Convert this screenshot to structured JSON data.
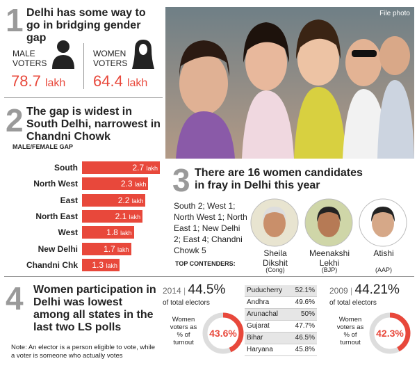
{
  "section1": {
    "number": "1",
    "title": "Delhi has some way to go in bridging gender gap",
    "male_label": "MALE VOTERS",
    "male_value": "78.7",
    "female_label": "WOMEN VOTERS",
    "female_value": "64.4",
    "unit": "lakh"
  },
  "photo_credit": "File photo",
  "section2": {
    "number": "2",
    "title": "The gap is widest in South Delhi, narrowest in Chandni Chowk",
    "axis_label": "MALE/FEMALE GAP",
    "categories": [
      "South",
      "North West",
      "East",
      "North East",
      "West",
      "New Delhi",
      "Chandni Chk"
    ],
    "values": [
      2.7,
      2.3,
      2.2,
      2.1,
      1.8,
      1.7,
      1.3
    ],
    "unit": "lakh",
    "color": "#e8483b"
  },
  "section3": {
    "number": "3",
    "title": "There are 16 women candidates in fray in Delhi this year",
    "breakdown": "South 2; West 1; North West 1; North East 1; New Delhi 2; East 4; Chandni Chowk 5",
    "contenders_label": "TOP CONTENDERS:",
    "contenders": [
      {
        "name": "Sheila Dikshit",
        "party": "(Cong)"
      },
      {
        "name": "Meenakshi Lekhi",
        "party": "(BJP)"
      },
      {
        "name": "Atishi",
        "party": "(AAP)"
      }
    ]
  },
  "section4": {
    "number": "4",
    "title": "Women participation in Delhi was lowest among all states in the last two LS polls",
    "note": "Note: An elector is a person eligible to vote, while a voter is someone who actually votes",
    "years": [
      {
        "year": "2014",
        "total": 44.5,
        "total_label": "44.5%",
        "total_caption": "of total electors",
        "donut_caption": "Women voters as % of turnout",
        "donut_value": 43.6,
        "donut_label": "43.6%"
      },
      {
        "year": "2009",
        "total": 44.21,
        "total_label": "44.21%",
        "total_caption": "of total electors",
        "donut_caption": "Women voters as % of turnout",
        "donut_value": 42.3,
        "donut_label": "42.3%"
      }
    ],
    "states": [
      [
        "Puducherry",
        "52.1%"
      ],
      [
        "Andhra",
        "49.6%"
      ],
      [
        "Arunachal",
        "50%"
      ],
      [
        "Gujarat",
        "47.7%"
      ],
      [
        "Bihar",
        "46.5%"
      ],
      [
        "Haryana",
        "45.8%"
      ]
    ]
  }
}
